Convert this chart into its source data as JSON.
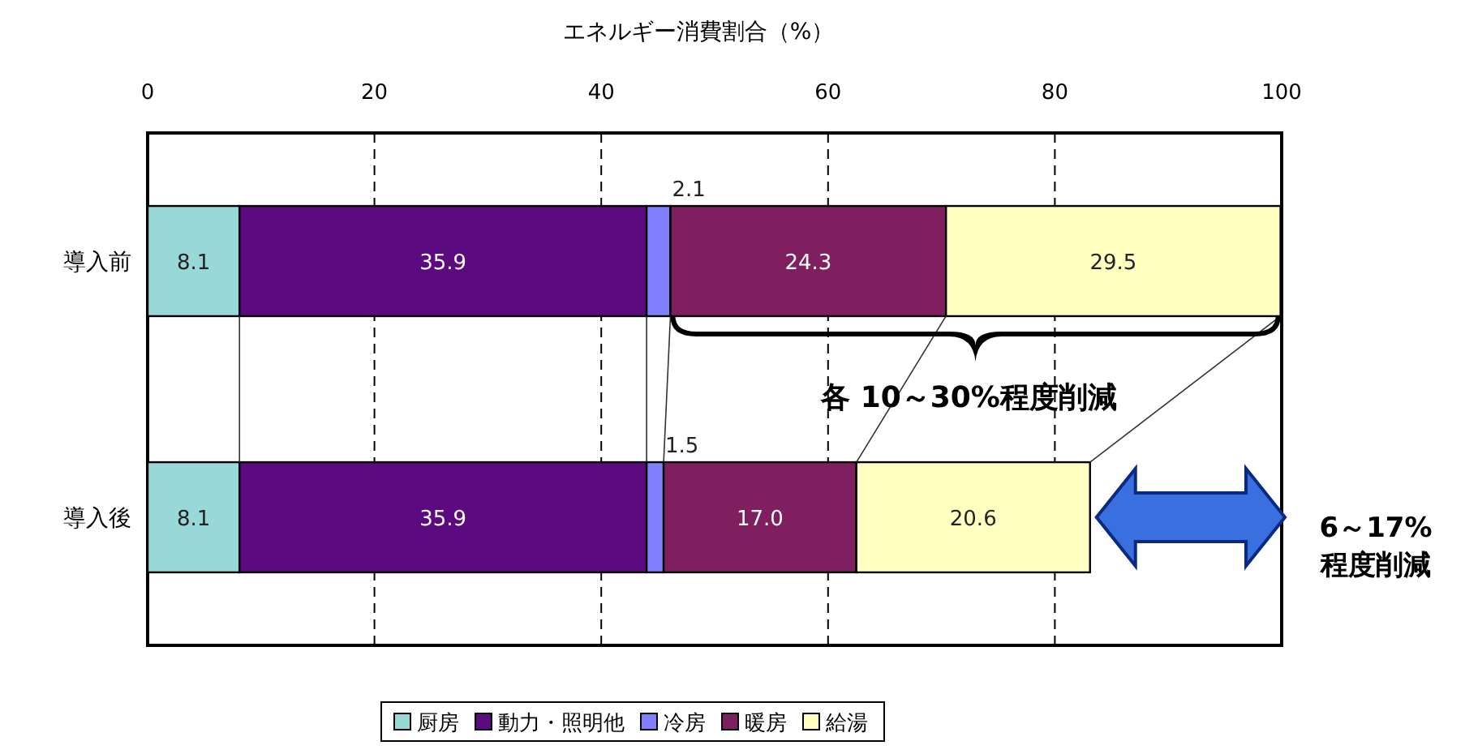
{
  "chart_data": {
    "type": "bar",
    "orientation": "horizontal",
    "stacked": true,
    "xlabel": "エネルギー消費割合（%）",
    "categories": [
      "導入前",
      "導入後"
    ],
    "series": [
      {
        "name": "厨房",
        "color": "#99d8d8",
        "values": [
          8.1,
          8.1
        ],
        "value_labels": [
          "8.1",
          "8.1"
        ]
      },
      {
        "name": "動力・照明他",
        "color": "#5c0a80",
        "values": [
          35.9,
          35.9
        ],
        "value_labels": [
          "35.9",
          "35.9"
        ]
      },
      {
        "name": "冷房",
        "color": "#8080ff",
        "values": [
          2.1,
          1.5
        ],
        "value_labels": [
          "2.1",
          "1.5"
        ]
      },
      {
        "name": "暖房",
        "color": "#7f1f5f",
        "values": [
          24.3,
          17.0
        ],
        "value_labels": [
          "24.3",
          "17.0"
        ]
      },
      {
        "name": "給湯",
        "color": "#ffffc0",
        "values": [
          29.5,
          20.6
        ],
        "value_labels": [
          "29.5",
          "20.6"
        ]
      }
    ],
    "xlim": [
      0,
      100
    ],
    "xticks": [
      0,
      20,
      40,
      60,
      80,
      100
    ],
    "grid": "x",
    "legend": "bottom",
    "annotations": [
      "各 10～30%程度削減",
      "6～17%\n程度削減"
    ]
  }
}
